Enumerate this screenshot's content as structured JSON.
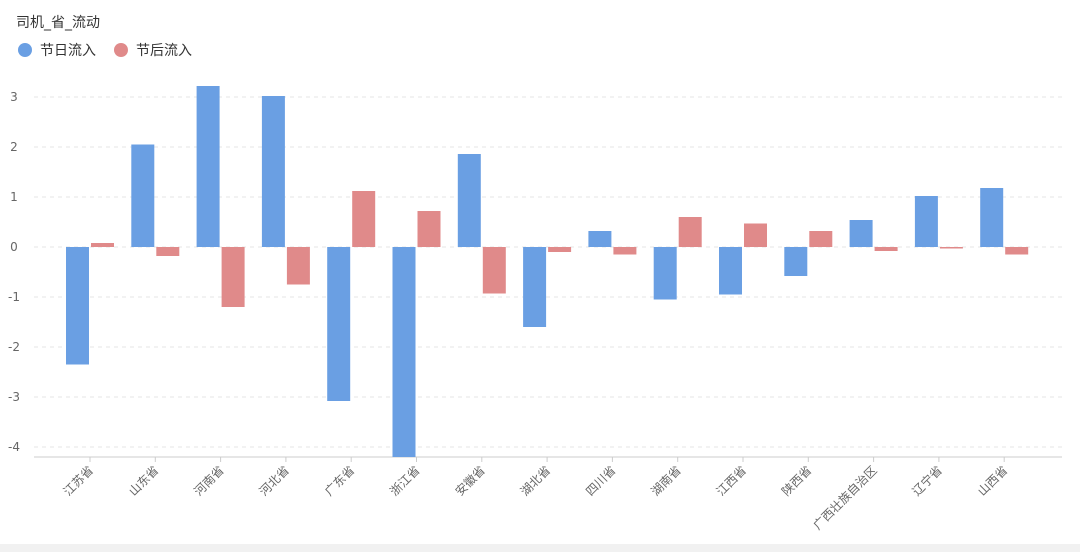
{
  "chart_data": {
    "type": "bar",
    "title": "司机_省_流动",
    "categories": [
      "江苏省",
      "山东省",
      "河南省",
      "河北省",
      "广东省",
      "浙江省",
      "安徽省",
      "湖北省",
      "四川省",
      "湖南省",
      "江西省",
      "陕西省",
      "广西壮族自治区",
      "辽宁省",
      "山西省"
    ],
    "series": [
      {
        "name": "节日流入",
        "color": "#6a9fe3",
        "values": [
          -2.35,
          2.05,
          3.22,
          3.02,
          -3.08,
          -4.2,
          1.86,
          -1.6,
          0.32,
          -1.05,
          -0.95,
          -0.58,
          0.54,
          1.02,
          1.18
        ]
      },
      {
        "name": "节后流入",
        "color": "#e08a8a",
        "values": [
          0.08,
          -0.18,
          -1.2,
          -0.75,
          1.12,
          0.72,
          -0.93,
          -0.1,
          -0.15,
          0.6,
          0.47,
          0.32,
          -0.08,
          -0.03,
          -0.15
        ]
      }
    ],
    "ylim": [
      -4.2,
      3.3
    ],
    "yticks": [
      3,
      2,
      1,
      0,
      -1,
      -2,
      -3,
      -4
    ],
    "grid": true,
    "legend": "top-left",
    "xlabel": "",
    "ylabel": ""
  }
}
